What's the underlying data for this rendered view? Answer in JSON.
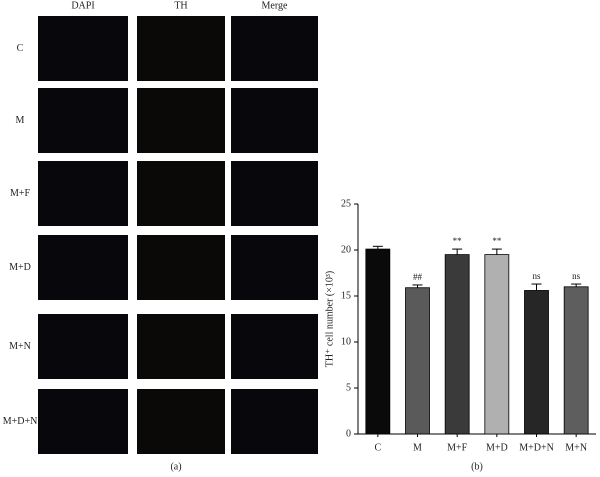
{
  "panel_a": {
    "columns": [
      "DAPI",
      "TH",
      "Merge"
    ],
    "rows": [
      "C",
      "M",
      "M+F",
      "M+D",
      "M+N",
      "M+D+N"
    ],
    "label": "(a)"
  },
  "chart_data": {
    "type": "bar",
    "ylabel": "TH⁺ cell number (×10³)",
    "panel_label": "(b)",
    "categories": [
      "C",
      "M",
      "M+F",
      "M+D",
      "M+D+N",
      "M+N"
    ],
    "values": [
      20.1,
      15.9,
      19.5,
      19.5,
      15.6,
      16.0
    ],
    "errors": [
      0.3,
      0.3,
      0.6,
      0.6,
      0.7,
      0.3
    ],
    "annotations": [
      null,
      "##",
      "**",
      "**",
      "ns",
      "ns"
    ],
    "colors": [
      "#0a0a0a",
      "#5a5a5a",
      "#3a3a3a",
      "#b0b0b0",
      "#262626",
      "#5e5e5e"
    ],
    "ylim": [
      0,
      25
    ],
    "yticks": [
      0,
      5,
      10,
      15,
      20,
      25
    ]
  }
}
